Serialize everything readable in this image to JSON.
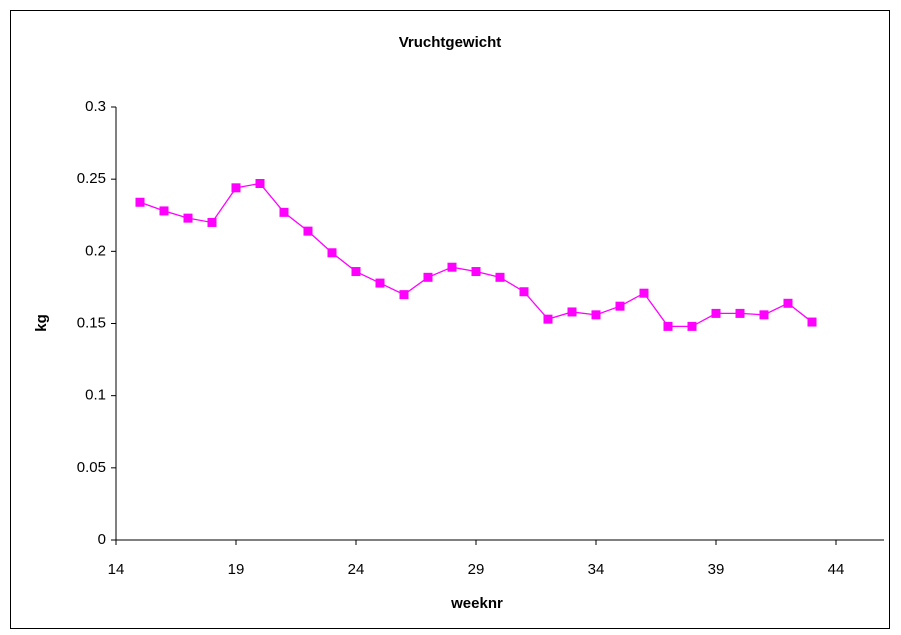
{
  "chart_data": {
    "type": "line",
    "title": "Vruchtgewicht",
    "x_label": "weeknr",
    "y_label": "kg",
    "x": [
      15,
      16,
      17,
      18,
      19,
      20,
      21,
      22,
      23,
      24,
      25,
      26,
      27,
      28,
      29,
      30,
      31,
      32,
      33,
      34,
      35,
      36,
      37,
      38,
      39,
      40,
      41,
      42,
      43
    ],
    "series": [
      {
        "color": "#ff00ff",
        "values": [
          0.234,
          0.228,
          0.223,
          0.22,
          0.244,
          0.247,
          0.227,
          0.214,
          0.199,
          0.186,
          0.178,
          0.17,
          0.182,
          0.189,
          0.186,
          0.182,
          0.172,
          0.153,
          0.158,
          0.156,
          0.162,
          0.171,
          0.148,
          0.148,
          0.157,
          0.157,
          0.156,
          0.164,
          0.151
        ]
      }
    ],
    "xlim": [
      14,
      46
    ],
    "xticks": [
      14,
      19,
      24,
      29,
      34,
      39,
      44
    ],
    "ylim": [
      0,
      0.3
    ],
    "yticks": [
      0,
      0.05,
      0.1,
      0.15,
      0.2,
      0.25,
      0.3
    ]
  }
}
